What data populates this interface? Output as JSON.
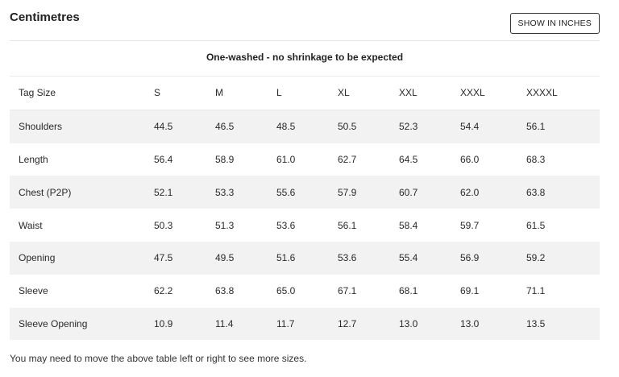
{
  "header": {
    "title": "Centimetres",
    "toggle_label": "SHOW IN INCHES"
  },
  "note": "One-washed - no shrinkage to be expected",
  "table": {
    "columns": [
      "Tag Size",
      "S",
      "M",
      "L",
      "XL",
      "XXL",
      "XXXL",
      "XXXXL"
    ],
    "rows": [
      {
        "label": "Shoulders",
        "values": [
          "44.5",
          "46.5",
          "48.5",
          "50.5",
          "52.3",
          "54.4",
          "56.1"
        ]
      },
      {
        "label": "Length",
        "values": [
          "56.4",
          "58.9",
          "61.0",
          "62.7",
          "64.5",
          "66.0",
          "68.3"
        ]
      },
      {
        "label": "Chest (P2P)",
        "values": [
          "52.1",
          "53.3",
          "55.6",
          "57.9",
          "60.7",
          "62.0",
          "63.8"
        ]
      },
      {
        "label": "Waist",
        "values": [
          "50.3",
          "51.3",
          "53.6",
          "56.1",
          "58.4",
          "59.7",
          "61.5"
        ]
      },
      {
        "label": "Opening",
        "values": [
          "47.5",
          "49.5",
          "51.6",
          "53.6",
          "55.4",
          "56.9",
          "59.2"
        ]
      },
      {
        "label": "Sleeve",
        "values": [
          "62.2",
          "63.8",
          "65.0",
          "67.1",
          "68.1",
          "69.1",
          "71.1"
        ]
      },
      {
        "label": "Sleeve Opening",
        "values": [
          "10.9",
          "11.4",
          "11.7",
          "12.7",
          "13.0",
          "13.0",
          "13.5"
        ]
      }
    ]
  },
  "footer": {
    "text": "You may need to move the above table left or right to see more sizes."
  }
}
